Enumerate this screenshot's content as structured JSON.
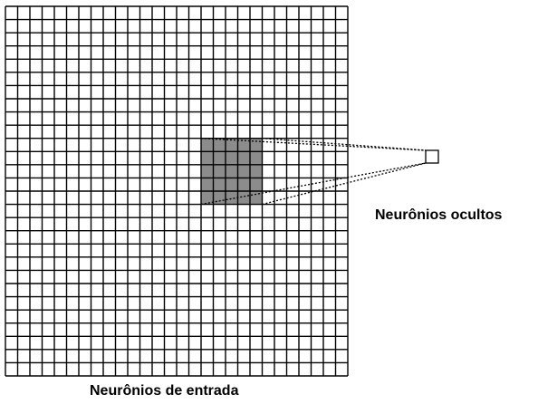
{
  "labels": {
    "hidden_neurons": "Neurônios ocultos",
    "input_neurons": "Neurônios de entrada"
  },
  "grid": {
    "rows": 28,
    "cols": 28
  },
  "receptive_field": {
    "col_start": 16,
    "row_start": 10,
    "cols": 5,
    "rows": 5
  },
  "hidden_neuron": {
    "count": 1
  },
  "colors": {
    "line": "#000000",
    "field_fill": "#8c8c8c",
    "background": "#ffffff"
  }
}
